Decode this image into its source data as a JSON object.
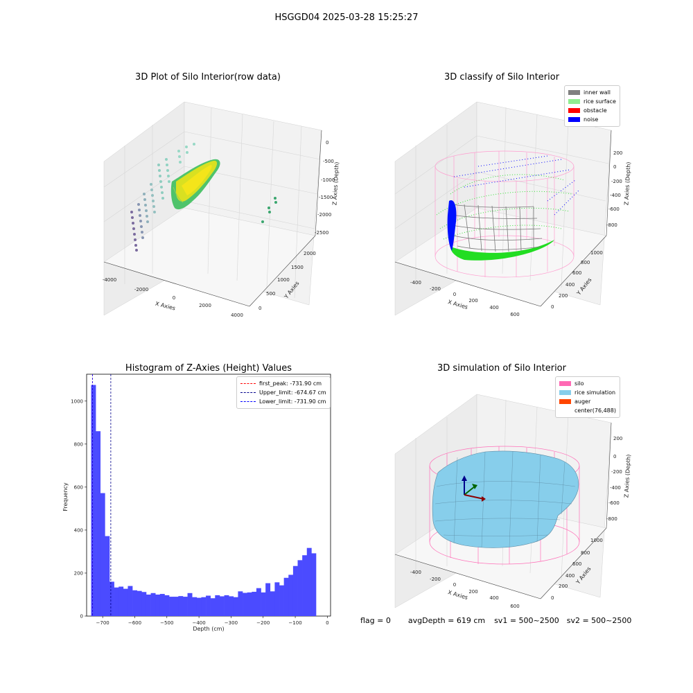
{
  "figure": {
    "suptitle": "HSGGD04 2025-03-28 15:25:27",
    "footer": {
      "flag": "flag = 0",
      "avg_depth": "avgDepth = 619 cm",
      "sv1": "sv1 = 500~2500",
      "sv2": "sv2 = 500~2500"
    }
  },
  "chart_data": [
    {
      "type": "scatter",
      "title": "3D Plot of Silo Interior(row data)",
      "xlabel": "X Axies",
      "ylabel": "Y Axies",
      "zlabel": "Z Axies (Depth)",
      "xticks": [
        "-4000",
        "-2000",
        "0",
        "2000",
        "4000"
      ],
      "yticks": [
        "0",
        "500",
        "1000",
        "1500",
        "2000"
      ],
      "zticks": [
        "0",
        "-500",
        "-1000",
        "-1500",
        "-2000",
        "-2500"
      ],
      "colors": {
        "points_low": "#6b4c8a",
        "points_high": "#8fd6c0",
        "surface_a": "#f4e51a",
        "surface_b": "#4fc36b"
      }
    },
    {
      "type": "scatter",
      "title": "3D classify of Silo Interior",
      "xlabel": "X Axies",
      "ylabel": "Y Axies",
      "zlabel": "Z Axies (Depth)",
      "xticks": [
        "-400",
        "-200",
        "0",
        "200",
        "400",
        "600"
      ],
      "yticks": [
        "0",
        "200",
        "400",
        "600",
        "800",
        "1000"
      ],
      "zticks": [
        "200",
        "0",
        "-200",
        "-400",
        "-600",
        "-800"
      ],
      "legend": [
        {
          "label": "inner wall",
          "color": "#808080"
        },
        {
          "label": "rice surface",
          "color": "#90ee90"
        },
        {
          "label": "obstacle",
          "color": "#ff0000"
        },
        {
          "label": "noise",
          "color": "#0000ff"
        }
      ]
    },
    {
      "type": "bar",
      "title": "Histogram of Z-Axies (Height) Values",
      "xlabel": "Depth (cm)",
      "ylabel": "Frequency",
      "xlim": [
        -750,
        10
      ],
      "ylim": [
        0,
        1125
      ],
      "xticks": [
        -700,
        -600,
        -500,
        -400,
        -300,
        -200,
        -100,
        0
      ],
      "xtick_labels": [
        "−700",
        "−600",
        "−500",
        "−400",
        "−300",
        "−200",
        "−100",
        "0"
      ],
      "yticks": [
        0,
        200,
        400,
        600,
        800,
        1000
      ],
      "bin_start": -736,
      "bin_width": 14.3,
      "values": [
        1075,
        860,
        572,
        372,
        160,
        133,
        137,
        127,
        140,
        120,
        117,
        112,
        100,
        107,
        100,
        103,
        97,
        90,
        90,
        93,
        90,
        107,
        88,
        85,
        88,
        95,
        83,
        97,
        92,
        97,
        92,
        88,
        115,
        108,
        110,
        113,
        130,
        110,
        153,
        115,
        157,
        143,
        178,
        192,
        233,
        260,
        283,
        317,
        292
      ],
      "bar_color": "#4b4bff",
      "vlines": [
        {
          "label": "first_peak: -731.90 cm",
          "x": -731.9,
          "color": "#ff0000"
        },
        {
          "label": "Upper_limit: -674.67 cm",
          "x": -674.67,
          "color": "#00008b"
        },
        {
          "label": "Lower_limit: -731.90 cm",
          "x": -731.9,
          "color": "#0000ff"
        }
      ]
    },
    {
      "type": "area",
      "title": "3D simulation of Silo Interior",
      "xlabel": "X Axies",
      "ylabel": "Y Axies",
      "zlabel": "Z Axies (Depth)",
      "xticks": [
        "-400",
        "-200",
        "0",
        "200",
        "400",
        "600"
      ],
      "yticks": [
        "0",
        "200",
        "400",
        "600",
        "800",
        "1000"
      ],
      "zticks": [
        "200",
        "0",
        "-200",
        "-400",
        "-600",
        "-800"
      ],
      "legend": [
        {
          "label": "silo",
          "color": "#ff69b4"
        },
        {
          "label": "rice simulation",
          "color": "#87ceeb"
        },
        {
          "label": "auger",
          "color": "#ff4500"
        },
        {
          "label": "center(76,488)",
          "color": ""
        }
      ]
    }
  ]
}
